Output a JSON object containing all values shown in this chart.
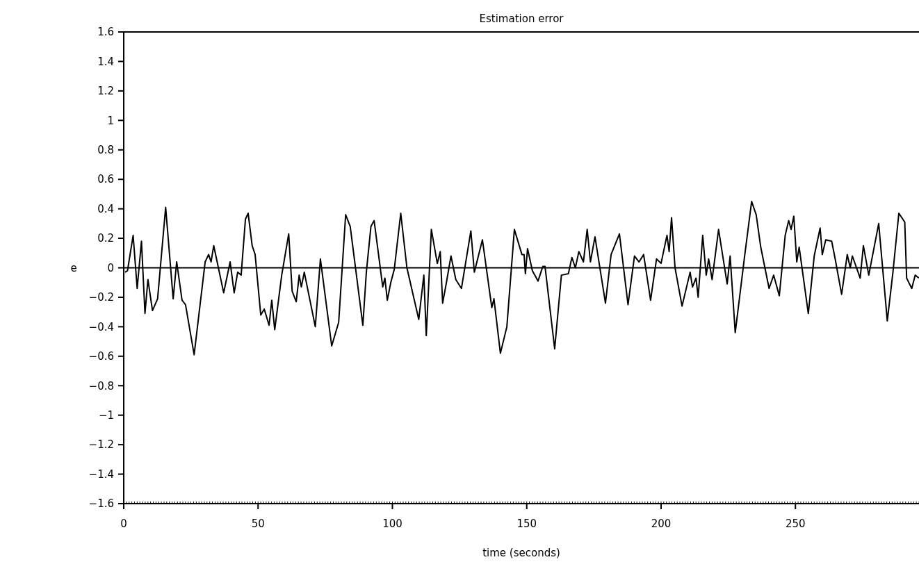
{
  "chart_data": {
    "type": "line",
    "title": "Estimation error",
    "xlabel": "time (seconds)",
    "ylabel": "e",
    "xlim": [
      0,
      296
    ],
    "xticks": [
      0,
      50,
      100,
      150,
      200,
      250
    ],
    "ylim": [
      -1.6,
      1.6
    ],
    "yticks": [
      -1.6,
      -1.4,
      -1.2,
      -1,
      -0.8,
      -0.6,
      -0.4,
      -0.2,
      0,
      0.2,
      0.4,
      0.6,
      0.8,
      1,
      1.2,
      1.4,
      1.6
    ],
    "ref_lines": [
      {
        "axis": "y",
        "value": 0,
        "color": "#000000"
      }
    ],
    "series": [
      {
        "color": "#000000",
        "x": [
          0.5,
          1.4,
          3.5,
          5.0,
          6.6,
          7.9,
          9.0,
          10.7,
          12.6,
          15.6,
          18.4,
          19.7,
          21.7,
          23.0,
          26.2,
          30.3,
          31.6,
          32.5,
          33.5,
          37.2,
          39.6,
          41.1,
          42.4,
          43.7,
          45.3,
          46.3,
          47.8,
          48.9,
          51.0,
          52.3,
          54.1,
          55.1,
          56.2,
          58.8,
          61.4,
          62.7,
          64.2,
          65.3,
          66.1,
          67.2,
          71.3,
          73.2,
          77.4,
          80.0,
          82.6,
          84.3,
          89.0,
          90.3,
          92.0,
          93.2,
          96.4,
          97.2,
          98.1,
          99.4,
          100.7,
          103.1,
          105.4,
          109.8,
          111.7,
          112.6,
          114.5,
          116.7,
          117.8,
          118.7,
          120.1,
          121.8,
          123.6,
          125.7,
          129.2,
          130.5,
          133.5,
          137.0,
          137.8,
          140.2,
          142.6,
          145.4,
          148.2,
          149.0,
          149.5,
          150.3,
          152.1,
          154.2,
          156.0,
          156.8,
          160.4,
          162.9,
          165.5,
          166.8,
          168.1,
          169.4,
          171.1,
          172.5,
          173.7,
          175.4,
          179.3,
          181.4,
          184.5,
          187.7,
          190.1,
          191.8,
          193.5,
          196.1,
          198.3,
          200.0,
          202.2,
          203.0,
          203.9,
          205.2,
          207.8,
          210.8,
          211.7,
          213.0,
          213.8,
          215.5,
          216.8,
          217.7,
          219.0,
          221.4,
          224.6,
          225.7,
          227.6,
          231.1,
          233.7,
          235.4,
          237.1,
          240.2,
          241.9,
          244.0,
          246.2,
          247.5,
          248.4,
          249.4,
          250.5,
          251.4,
          254.8,
          257.0,
          259.2,
          260.0,
          261.3,
          263.5,
          264.8,
          267.2,
          269.3,
          270.4,
          271.2,
          274.1,
          275.3,
          277.3,
          281.0,
          284.2,
          286.3,
          288.5,
          290.7,
          291.4,
          293.3,
          294.6,
          295.9
        ],
        "values": [
          -0.03,
          -0.02,
          0.22,
          -0.14,
          0.18,
          -0.31,
          -0.08,
          -0.29,
          -0.21,
          0.41,
          -0.21,
          0.04,
          -0.22,
          -0.25,
          -0.59,
          0.04,
          0.09,
          0.04,
          0.15,
          -0.17,
          0.04,
          -0.17,
          -0.03,
          -0.05,
          0.33,
          0.37,
          0.15,
          0.09,
          -0.32,
          -0.28,
          -0.39,
          -0.22,
          -0.42,
          -0.05,
          0.23,
          -0.16,
          -0.23,
          -0.05,
          -0.13,
          -0.03,
          -0.4,
          0.06,
          -0.53,
          -0.37,
          0.36,
          0.28,
          -0.39,
          -0.03,
          0.28,
          0.32,
          -0.13,
          -0.07,
          -0.22,
          -0.1,
          -0.01,
          0.37,
          0,
          -0.35,
          -0.05,
          -0.46,
          0.26,
          0.03,
          0.11,
          -0.24,
          -0.1,
          0.08,
          -0.08,
          -0.14,
          0.25,
          -0.03,
          0.19,
          -0.27,
          -0.21,
          -0.58,
          -0.4,
          0.26,
          0.09,
          0.09,
          -0.04,
          0.13,
          -0.02,
          -0.09,
          0.01,
          0.01,
          -0.55,
          -0.05,
          -0.04,
          0.07,
          0,
          0.11,
          0.04,
          0.26,
          0.04,
          0.21,
          -0.24,
          0.09,
          0.23,
          -0.25,
          0.08,
          0.04,
          0.09,
          -0.22,
          0.06,
          0.03,
          0.22,
          0.11,
          0.34,
          0,
          -0.26,
          -0.03,
          -0.13,
          -0.07,
          -0.2,
          0.22,
          -0.05,
          0.06,
          -0.08,
          0.26,
          -0.11,
          0.08,
          -0.44,
          0.08,
          0.45,
          0.36,
          0.14,
          -0.14,
          -0.05,
          -0.19,
          0.22,
          0.32,
          0.26,
          0.35,
          0.04,
          0.14,
          -0.31,
          0.08,
          0.27,
          0.09,
          0.19,
          0.18,
          0.06,
          -0.18,
          0.09,
          0,
          0.08,
          -0.07,
          0.15,
          -0.05,
          0.3,
          -0.36,
          -0.03,
          0.37,
          0.31,
          -0.07,
          -0.14,
          -0.05,
          -0.07
        ]
      }
    ]
  }
}
